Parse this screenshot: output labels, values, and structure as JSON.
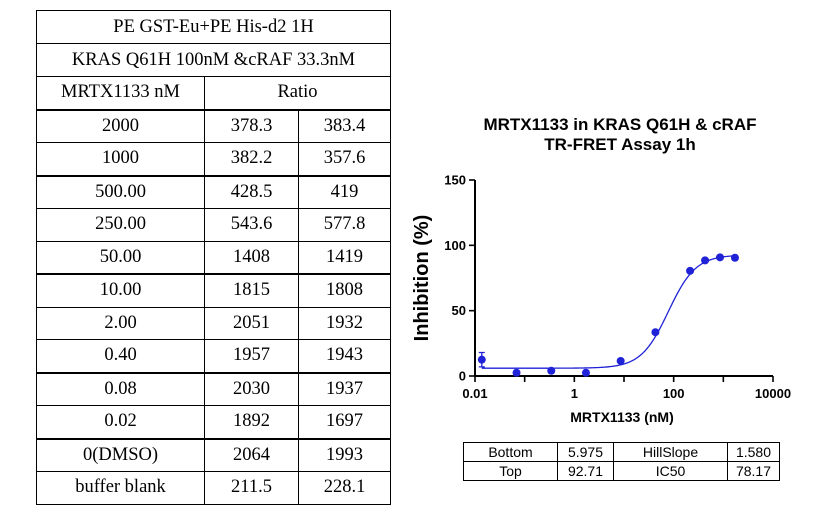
{
  "table": {
    "title_line1": "PE GST-Eu+PE His-d2 1H",
    "title_line2": "KRAS Q61H 100nM &cRAF 33.3nM",
    "col_header_conc": "MRTX1133 nM",
    "col_header_ratio": "Ratio",
    "rows": [
      {
        "conc": "2000",
        "r1": "378.3",
        "r2": "383.4"
      },
      {
        "conc": "1000",
        "r1": "382.2",
        "r2": "357.6"
      },
      {
        "conc": "500.00",
        "r1": "428.5",
        "r2": "419"
      },
      {
        "conc": "250.00",
        "r1": "543.6",
        "r2": "577.8"
      },
      {
        "conc": "50.00",
        "r1": "1408",
        "r2": "1419"
      },
      {
        "conc": "10.00",
        "r1": "1815",
        "r2": "1808"
      },
      {
        "conc": "2.00",
        "r1": "2051",
        "r2": "1932"
      },
      {
        "conc": "0.40",
        "r1": "1957",
        "r2": "1943"
      },
      {
        "conc": "0.08",
        "r1": "2030",
        "r2": "1937"
      },
      {
        "conc": "0.02",
        "r1": "1892",
        "r2": "1697"
      },
      {
        "conc": "0(DMSO)",
        "r1": "2064",
        "r2": "1993"
      },
      {
        "conc": "buffer blank",
        "r1": "211.5",
        "r2": "228.1"
      }
    ]
  },
  "chart_data": {
    "type": "scatter",
    "title_line1": "MRTX1133 in KRAS Q61H & cRAF",
    "title_line2": "TR-FRET Assay 1h",
    "xlabel": "MRTX1133 (nM)",
    "ylabel": "Inhibition (%)",
    "xscale": "log",
    "xlim": [
      0.01,
      10000
    ],
    "ylim": [
      0,
      150
    ],
    "xticks": [
      "0.01",
      "1",
      "100",
      "10000"
    ],
    "yticks": [
      "0",
      "50",
      "100",
      "150"
    ],
    "series": [
      {
        "name": "MRTX1133",
        "color": "#1f22d6",
        "points": [
          {
            "x": 0.0137,
            "y": 12.5,
            "err": 5.5
          },
          {
            "x": 0.0686,
            "y": 2.5
          },
          {
            "x": 0.343,
            "y": 4.0
          },
          {
            "x": 1.715,
            "y": 2.5
          },
          {
            "x": 8.57,
            "y": 11.5
          },
          {
            "x": 42.9,
            "y": 33.5
          },
          {
            "x": 214,
            "y": 80.5
          },
          {
            "x": 429,
            "y": 88.5
          },
          {
            "x": 857,
            "y": 90.8
          },
          {
            "x": 1715,
            "y": 90.5
          }
        ],
        "fit": {
          "bottom": 5.975,
          "top": 92.71,
          "ic50": 78.17,
          "hillslope": 1.58
        }
      }
    ]
  },
  "params": {
    "bottom_label": "Bottom",
    "bottom_value": "5.975",
    "hillslope_label": "HillSlope",
    "hillslope_value": "1.580",
    "top_label": "Top",
    "top_value": "92.71",
    "ic50_label": "IC50",
    "ic50_value": "78.17"
  }
}
